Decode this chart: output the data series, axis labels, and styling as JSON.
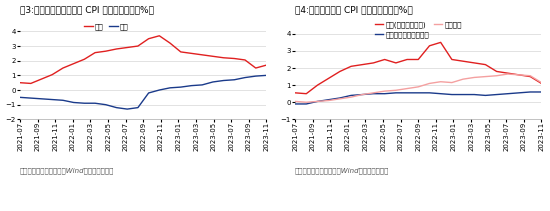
{
  "title1": "图3:日本商品与服务对于 CPI 同比的贡献率（%）",
  "title2": "图4:日本主要商品 CPI 同比的贡献率（%）",
  "source_text": "数据来源：日本统计局，Wind，中信建投证券",
  "x_labels": [
    "2021-07",
    "2021-09",
    "2021-11",
    "2022-01",
    "2022-03",
    "2022-05",
    "2022-07",
    "2022-09",
    "2022-11",
    "2023-01",
    "2023-03",
    "2023-05",
    "2023-07",
    "2023-09",
    "2023-11"
  ],
  "chart1": {
    "goods": [
      0.5,
      0.45,
      0.75,
      1.05,
      1.5,
      1.8,
      2.1,
      2.55,
      2.65,
      2.8,
      2.9,
      3.0,
      3.5,
      3.7,
      3.2,
      2.6,
      2.5,
      2.4,
      2.3,
      2.2,
      2.15,
      2.05,
      1.5,
      1.7
    ],
    "services": [
      -0.5,
      -0.55,
      -0.6,
      -0.65,
      -0.7,
      -0.85,
      -0.9,
      -0.9,
      -1.0,
      -1.2,
      -1.3,
      -1.2,
      -0.2,
      0.0,
      0.15,
      0.2,
      0.3,
      0.35,
      0.55,
      0.65,
      0.7,
      0.85,
      0.95,
      1.0
    ],
    "goods_color": "#e02020",
    "services_color": "#1a3a8a",
    "ylim": [
      -2,
      5
    ],
    "yticks": [
      -2,
      -1,
      0,
      1,
      2,
      3,
      4
    ],
    "legend_labels": [
      "商品",
      "服务"
    ]
  },
  "chart2": {
    "goods_ex_fresh": [
      0.55,
      0.5,
      1.0,
      1.4,
      1.8,
      2.1,
      2.2,
      2.3,
      2.5,
      2.3,
      2.5,
      2.5,
      3.3,
      3.5,
      2.5,
      2.4,
      2.3,
      2.2,
      1.8,
      1.7,
      1.6,
      1.5,
      1.1
    ],
    "fresh_food": [
      -0.1,
      -0.1,
      0.05,
      0.15,
      0.25,
      0.4,
      0.45,
      0.5,
      0.5,
      0.55,
      0.55,
      0.55,
      0.55,
      0.5,
      0.45,
      0.45,
      0.45,
      0.4,
      0.45,
      0.5,
      0.55,
      0.6,
      0.6
    ],
    "food_products": [
      0.05,
      0.0,
      0.05,
      0.1,
      0.2,
      0.3,
      0.45,
      0.55,
      0.65,
      0.7,
      0.8,
      0.9,
      1.1,
      1.2,
      1.15,
      1.35,
      1.45,
      1.5,
      1.55,
      1.65,
      1.6,
      1.55,
      1.15
    ],
    "goods_ex_fresh_color": "#e02020",
    "fresh_food_color": "#1a3a8a",
    "food_products_color": "#f4a0a0",
    "ylim": [
      -1,
      5
    ],
    "yticks": [
      -1,
      0,
      1,
      2,
      3,
      4
    ],
    "legend_labels": [
      "商品(剔除新鲜食品)",
      "生鲜食品、生肉及切花",
      "食品产品"
    ]
  },
  "background_color": "#ffffff",
  "title_fontsize": 6.5,
  "label_fontsize": 5.0,
  "legend_fontsize": 5.2,
  "source_fontsize": 5.0,
  "line_width": 1.0
}
